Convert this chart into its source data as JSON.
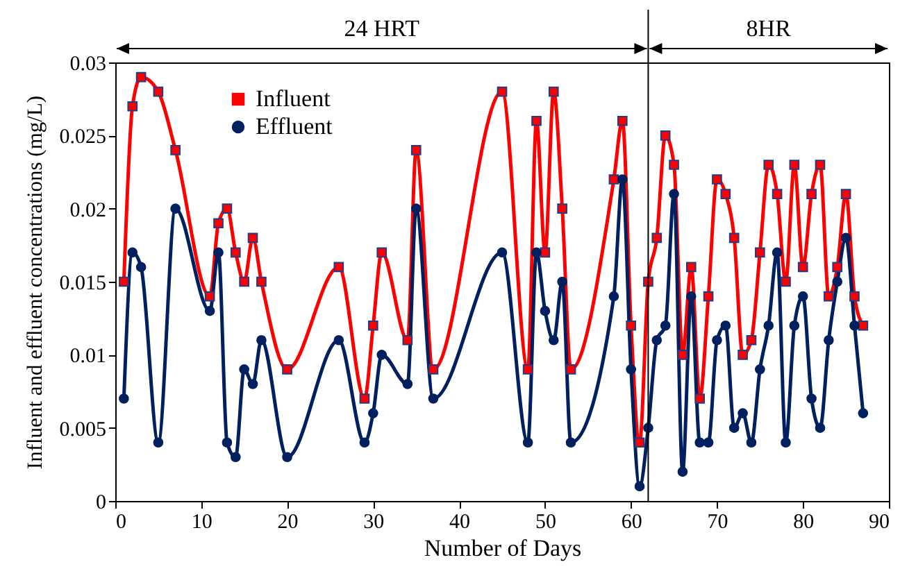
{
  "chart_data": {
    "type": "line",
    "xlabel": "Number of Days",
    "ylabel": "Influent  and effluent concentrations (mg/L)",
    "xlim": [
      0,
      90
    ],
    "xticks": [
      0,
      10,
      20,
      30,
      40,
      50,
      60,
      70,
      80,
      90
    ],
    "ylim": [
      0,
      0.03
    ],
    "yticks": [
      0,
      0.005,
      0.01,
      0.015,
      0.02,
      0.025,
      0.03
    ],
    "grid": false,
    "legend": "top left",
    "ref_lines": [
      {
        "axis": "x",
        "value": 62
      }
    ],
    "annotations": [
      "24 HRT",
      "8HR"
    ],
    "series": [
      {
        "name": "Influent",
        "color": "#ff0000",
        "marker": "square",
        "x": [
          1,
          2,
          3,
          5,
          7,
          11,
          12,
          13,
          14,
          15,
          16,
          17,
          20,
          26,
          29,
          30,
          31,
          34,
          35,
          37,
          45,
          48,
          49,
          50,
          51,
          52,
          53,
          58,
          59,
          60,
          61,
          62,
          63,
          64,
          65,
          66,
          67,
          68,
          69,
          70,
          71,
          72,
          73,
          74,
          75,
          76,
          77,
          78,
          79,
          80,
          81,
          82,
          83,
          84,
          85,
          86,
          87
        ],
        "values": [
          0.015,
          0.027,
          0.029,
          0.028,
          0.024,
          0.014,
          0.019,
          0.02,
          0.017,
          0.015,
          0.018,
          0.015,
          0.009,
          0.016,
          0.007,
          0.012,
          0.017,
          0.011,
          0.024,
          0.009,
          0.028,
          0.009,
          0.026,
          0.017,
          0.028,
          0.02,
          0.009,
          0.022,
          0.026,
          0.012,
          0.004,
          0.015,
          0.018,
          0.025,
          0.023,
          0.01,
          0.016,
          0.007,
          0.014,
          0.022,
          0.021,
          0.018,
          0.01,
          0.011,
          0.017,
          0.023,
          0.021,
          0.015,
          0.023,
          0.016,
          0.021,
          0.023,
          0.014,
          0.016,
          0.021,
          0.014,
          0.012
        ]
      },
      {
        "name": "Effluent",
        "color": "#002060",
        "marker": "circle",
        "x": [
          1,
          2,
          3,
          5,
          7,
          11,
          12,
          13,
          14,
          15,
          16,
          17,
          20,
          26,
          29,
          30,
          31,
          34,
          35,
          37,
          45,
          48,
          49,
          50,
          51,
          52,
          53,
          58,
          59,
          60,
          61,
          62,
          63,
          64,
          65,
          66,
          67,
          68,
          69,
          70,
          71,
          72,
          73,
          74,
          75,
          76,
          77,
          78,
          79,
          80,
          81,
          82,
          83,
          84,
          85,
          86,
          87
        ],
        "values": [
          0.007,
          0.017,
          0.016,
          0.004,
          0.02,
          0.013,
          0.017,
          0.004,
          0.003,
          0.009,
          0.008,
          0.011,
          0.003,
          0.011,
          0.004,
          0.006,
          0.01,
          0.008,
          0.02,
          0.007,
          0.017,
          0.004,
          0.017,
          0.013,
          0.011,
          0.015,
          0.004,
          0.014,
          0.022,
          0.009,
          0.001,
          0.005,
          0.011,
          0.012,
          0.021,
          0.002,
          0.014,
          0.004,
          0.004,
          0.011,
          0.012,
          0.005,
          0.006,
          0.004,
          0.009,
          0.012,
          0.017,
          0.004,
          0.012,
          0.014,
          0.007,
          0.005,
          0.011,
          0.015,
          0.018,
          0.012,
          0.006
        ]
      }
    ]
  }
}
